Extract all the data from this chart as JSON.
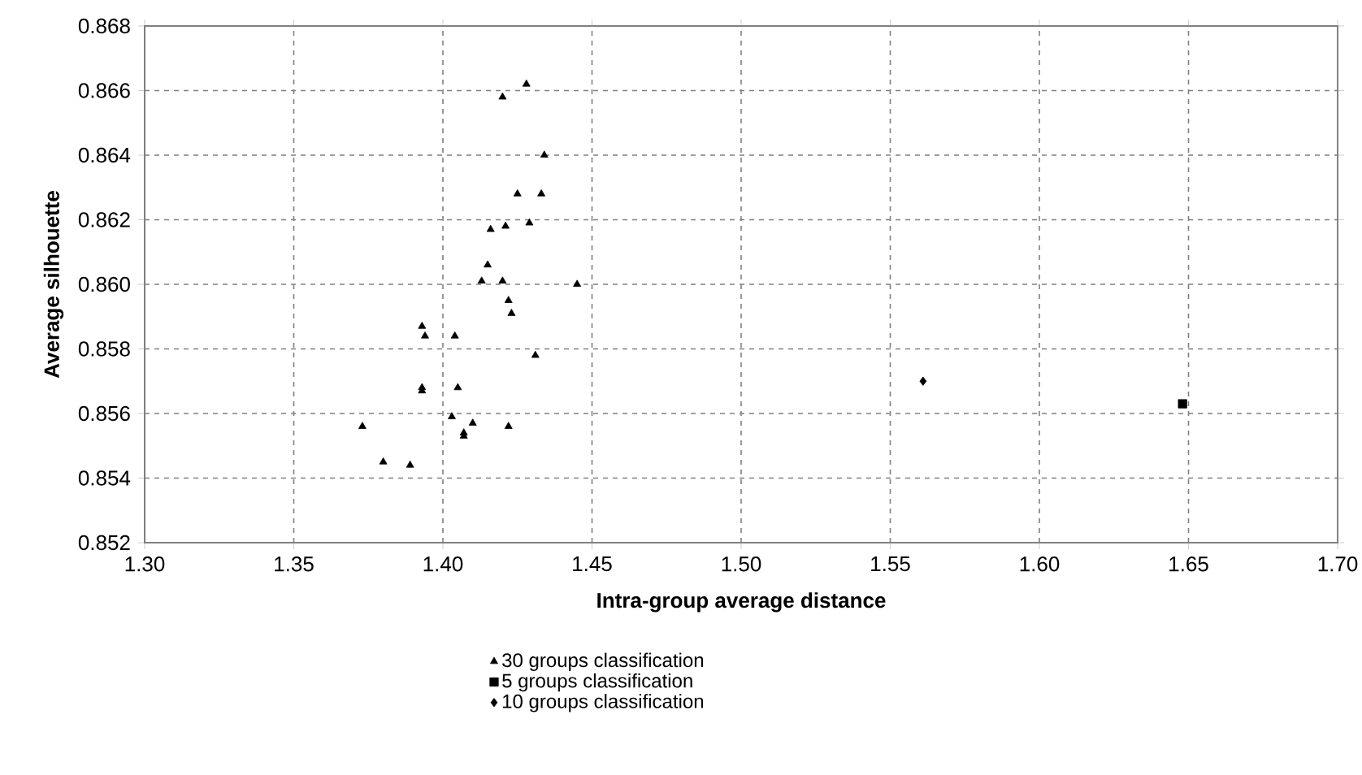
{
  "chart_data": {
    "type": "scatter",
    "xlabel": "Intra-group average distance",
    "ylabel": "Average silhouette",
    "xlim": [
      1.3,
      1.7
    ],
    "ylim": [
      0.852,
      0.868
    ],
    "xticks": [
      {
        "value": 1.3,
        "label": "1.30"
      },
      {
        "value": 1.35,
        "label": "1.35"
      },
      {
        "value": 1.4,
        "label": "1.40"
      },
      {
        "value": 1.45,
        "label": "1.45"
      },
      {
        "value": 1.5,
        "label": "1.50"
      },
      {
        "value": 1.55,
        "label": "1.55"
      },
      {
        "value": 1.6,
        "label": "1.60"
      },
      {
        "value": 1.65,
        "label": "1.65"
      },
      {
        "value": 1.7,
        "label": "1.70"
      }
    ],
    "yticks": [
      0.852,
      0.854,
      0.856,
      0.858,
      {
        "value": 0.86,
        "label": "0.860"
      },
      0.862,
      0.864,
      0.866,
      0.868
    ],
    "grid": true,
    "legend": "bottom",
    "series": [
      {
        "name": "30 groups classification",
        "color": "#000000",
        "marker": "triangle",
        "x": [
          1.373,
          1.38,
          1.389,
          1.393,
          1.394,
          1.393,
          1.393,
          1.403,
          1.404,
          1.405,
          1.407,
          1.407,
          1.41,
          1.413,
          1.415,
          1.416,
          1.42,
          1.42,
          1.421,
          1.422,
          1.423,
          1.422,
          1.425,
          1.428,
          1.429,
          1.431,
          1.433,
          1.434,
          1.445
        ],
        "values": [
          0.8556,
          0.8545,
          0.8544,
          0.8587,
          0.8584,
          0.8568,
          0.8567,
          0.8559,
          0.8584,
          0.8568,
          0.8554,
          0.8553,
          0.8557,
          0.8601,
          0.8606,
          0.8617,
          0.8601,
          0.8658,
          0.8618,
          0.8595,
          0.8591,
          0.8556,
          0.8628,
          0.8662,
          0.8619,
          0.8578,
          0.8628,
          0.864,
          0.86
        ]
      },
      {
        "name": "5 groups classification",
        "color": "#000000",
        "marker": "square",
        "x": [
          1.648
        ],
        "values": [
          0.8563
        ]
      },
      {
        "name": "10 groups classification",
        "color": "#000000",
        "marker": "diamond",
        "x": [
          1.561
        ],
        "values": [
          0.857
        ]
      }
    ]
  }
}
